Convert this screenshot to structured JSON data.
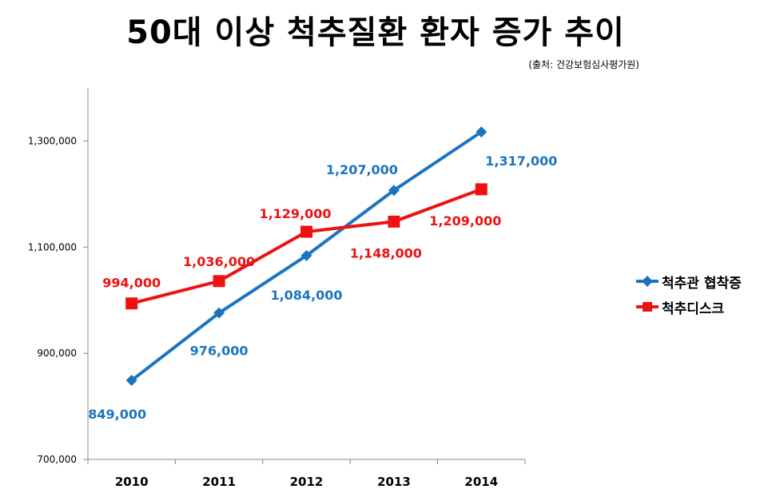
{
  "chart_data": {
    "type": "line",
    "title": "50대 이상 척추질환 환자 증가 추이",
    "source": "(출처: 건강보험심사평가원)",
    "categories": [
      "2010",
      "2011",
      "2012",
      "2013",
      "2014"
    ],
    "series": [
      {
        "name": "척추관 협착증",
        "color": "#1a75c0",
        "marker": "diamond",
        "values": [
          849000,
          976000,
          1084000,
          1207000,
          1317000
        ],
        "labels": [
          "849,000",
          "976,000",
          "1,084,000",
          "1,207,000",
          "1,317,000"
        ]
      },
      {
        "name": "척추디스크",
        "color": "#ee1111",
        "marker": "square",
        "values": [
          994000,
          1036000,
          1129000,
          1148000,
          1209000
        ],
        "labels": [
          "994,000",
          "1,036,000",
          "1,129,000",
          "1,148,000",
          "1,209,000"
        ]
      }
    ],
    "yticks": [
      700000,
      900000,
      1100000,
      1300000
    ],
    "ytick_labels": [
      "700,000",
      "900,000",
      "1,100,000",
      "1,300,000"
    ],
    "ylim": [
      700000,
      1400000
    ],
    "xlabel": "",
    "ylabel": "",
    "grid": false,
    "legend_position": "right"
  }
}
